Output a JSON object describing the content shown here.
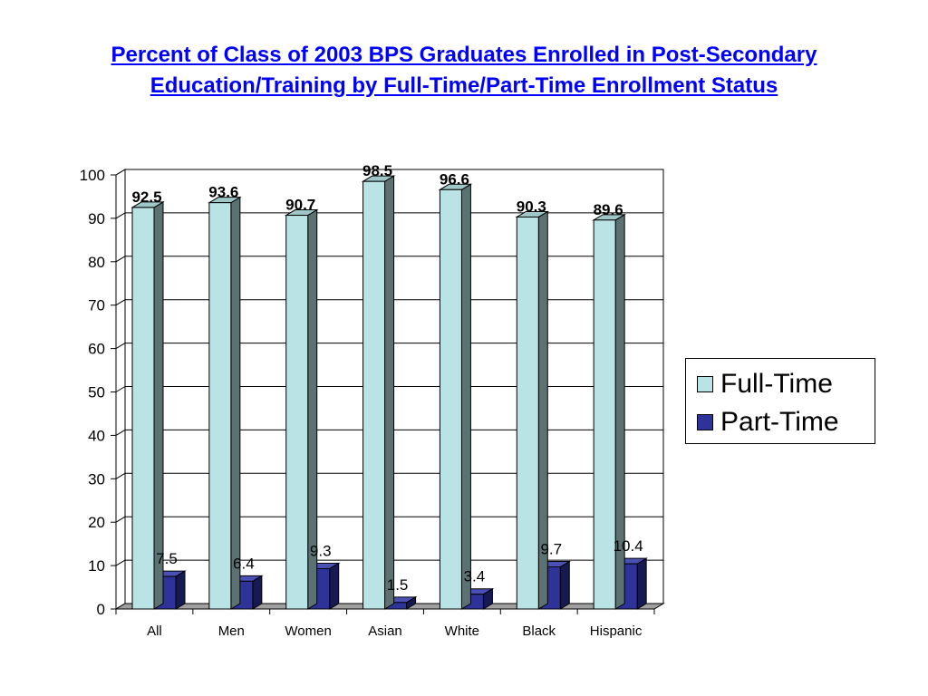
{
  "title": "Percent of Class of 2003 BPS Graduates Enrolled in Post-Secondary Education/Training by Full-Time/Part-Time Enrollment Status",
  "colors": {
    "full_time": "#b9e3e4",
    "full_time_side": "#5c7272",
    "part_time": "#2e3399",
    "part_time_side": "#161a52",
    "title": "#0000ff"
  },
  "legend": {
    "items": [
      {
        "label": "Full-Time",
        "color": "#b9e3e4"
      },
      {
        "label": "Part-Time",
        "color": "#2e3399"
      }
    ]
  },
  "chart_data": {
    "type": "bar",
    "title": "Percent of Class of 2003 BPS Graduates Enrolled in Post-Secondary Education/Training by Full-Time/Part-Time Enrollment Status",
    "categories": [
      "All",
      "Men",
      "Women",
      "Asian",
      "White",
      "Black",
      "Hispanic"
    ],
    "series": [
      {
        "name": "Full-Time",
        "values": [
          92.5,
          93.6,
          90.7,
          98.5,
          96.6,
          90.3,
          89.6
        ]
      },
      {
        "name": "Part-Time",
        "values": [
          7.5,
          6.4,
          9.3,
          1.5,
          3.4,
          9.7,
          10.4
        ]
      }
    ],
    "ylim": [
      0,
      100
    ],
    "yticks": [
      0,
      10,
      20,
      30,
      40,
      50,
      60,
      70,
      80,
      90,
      100
    ],
    "xlabel": "",
    "ylabel": "",
    "grid": true,
    "legend_position": "right",
    "three_d": true
  }
}
